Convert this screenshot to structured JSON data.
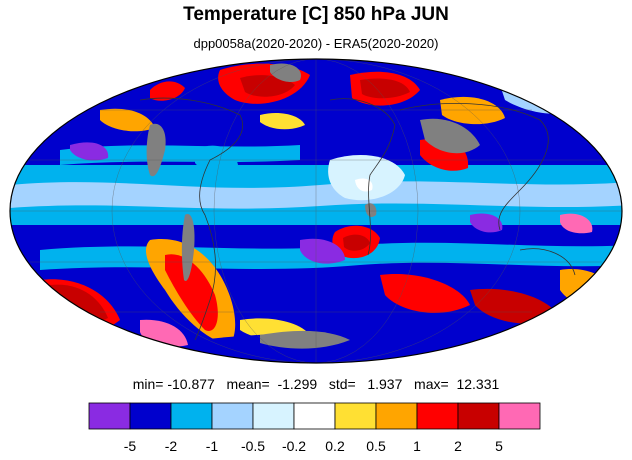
{
  "title": "Temperature [C] 850 hPa JUN",
  "subtitle": "dpp0058a(2020-2020) - ERA5(2020-2020)",
  "stats": {
    "line": "min= -10.877   mean=  -1.299   std=   1.937   max=  12.331"
  },
  "map": {
    "projection": "Mollweide",
    "grid": true,
    "missing_color": "#808080",
    "land_outline_color": "#333333"
  },
  "colorbar": {
    "colors": [
      "#8a2be2",
      "#0000cd",
      "#00b2ee",
      "#a4d3ff",
      "#d7f3ff",
      "#ffffff",
      "#ffe033",
      "#ffa500",
      "#ff0000",
      "#c80000",
      "#ff69b4"
    ],
    "ticks": [
      "-5",
      "-2",
      "-1",
      "-0.5",
      "-0.2",
      "0.2",
      "0.5",
      "1",
      "2",
      "5"
    ]
  }
}
